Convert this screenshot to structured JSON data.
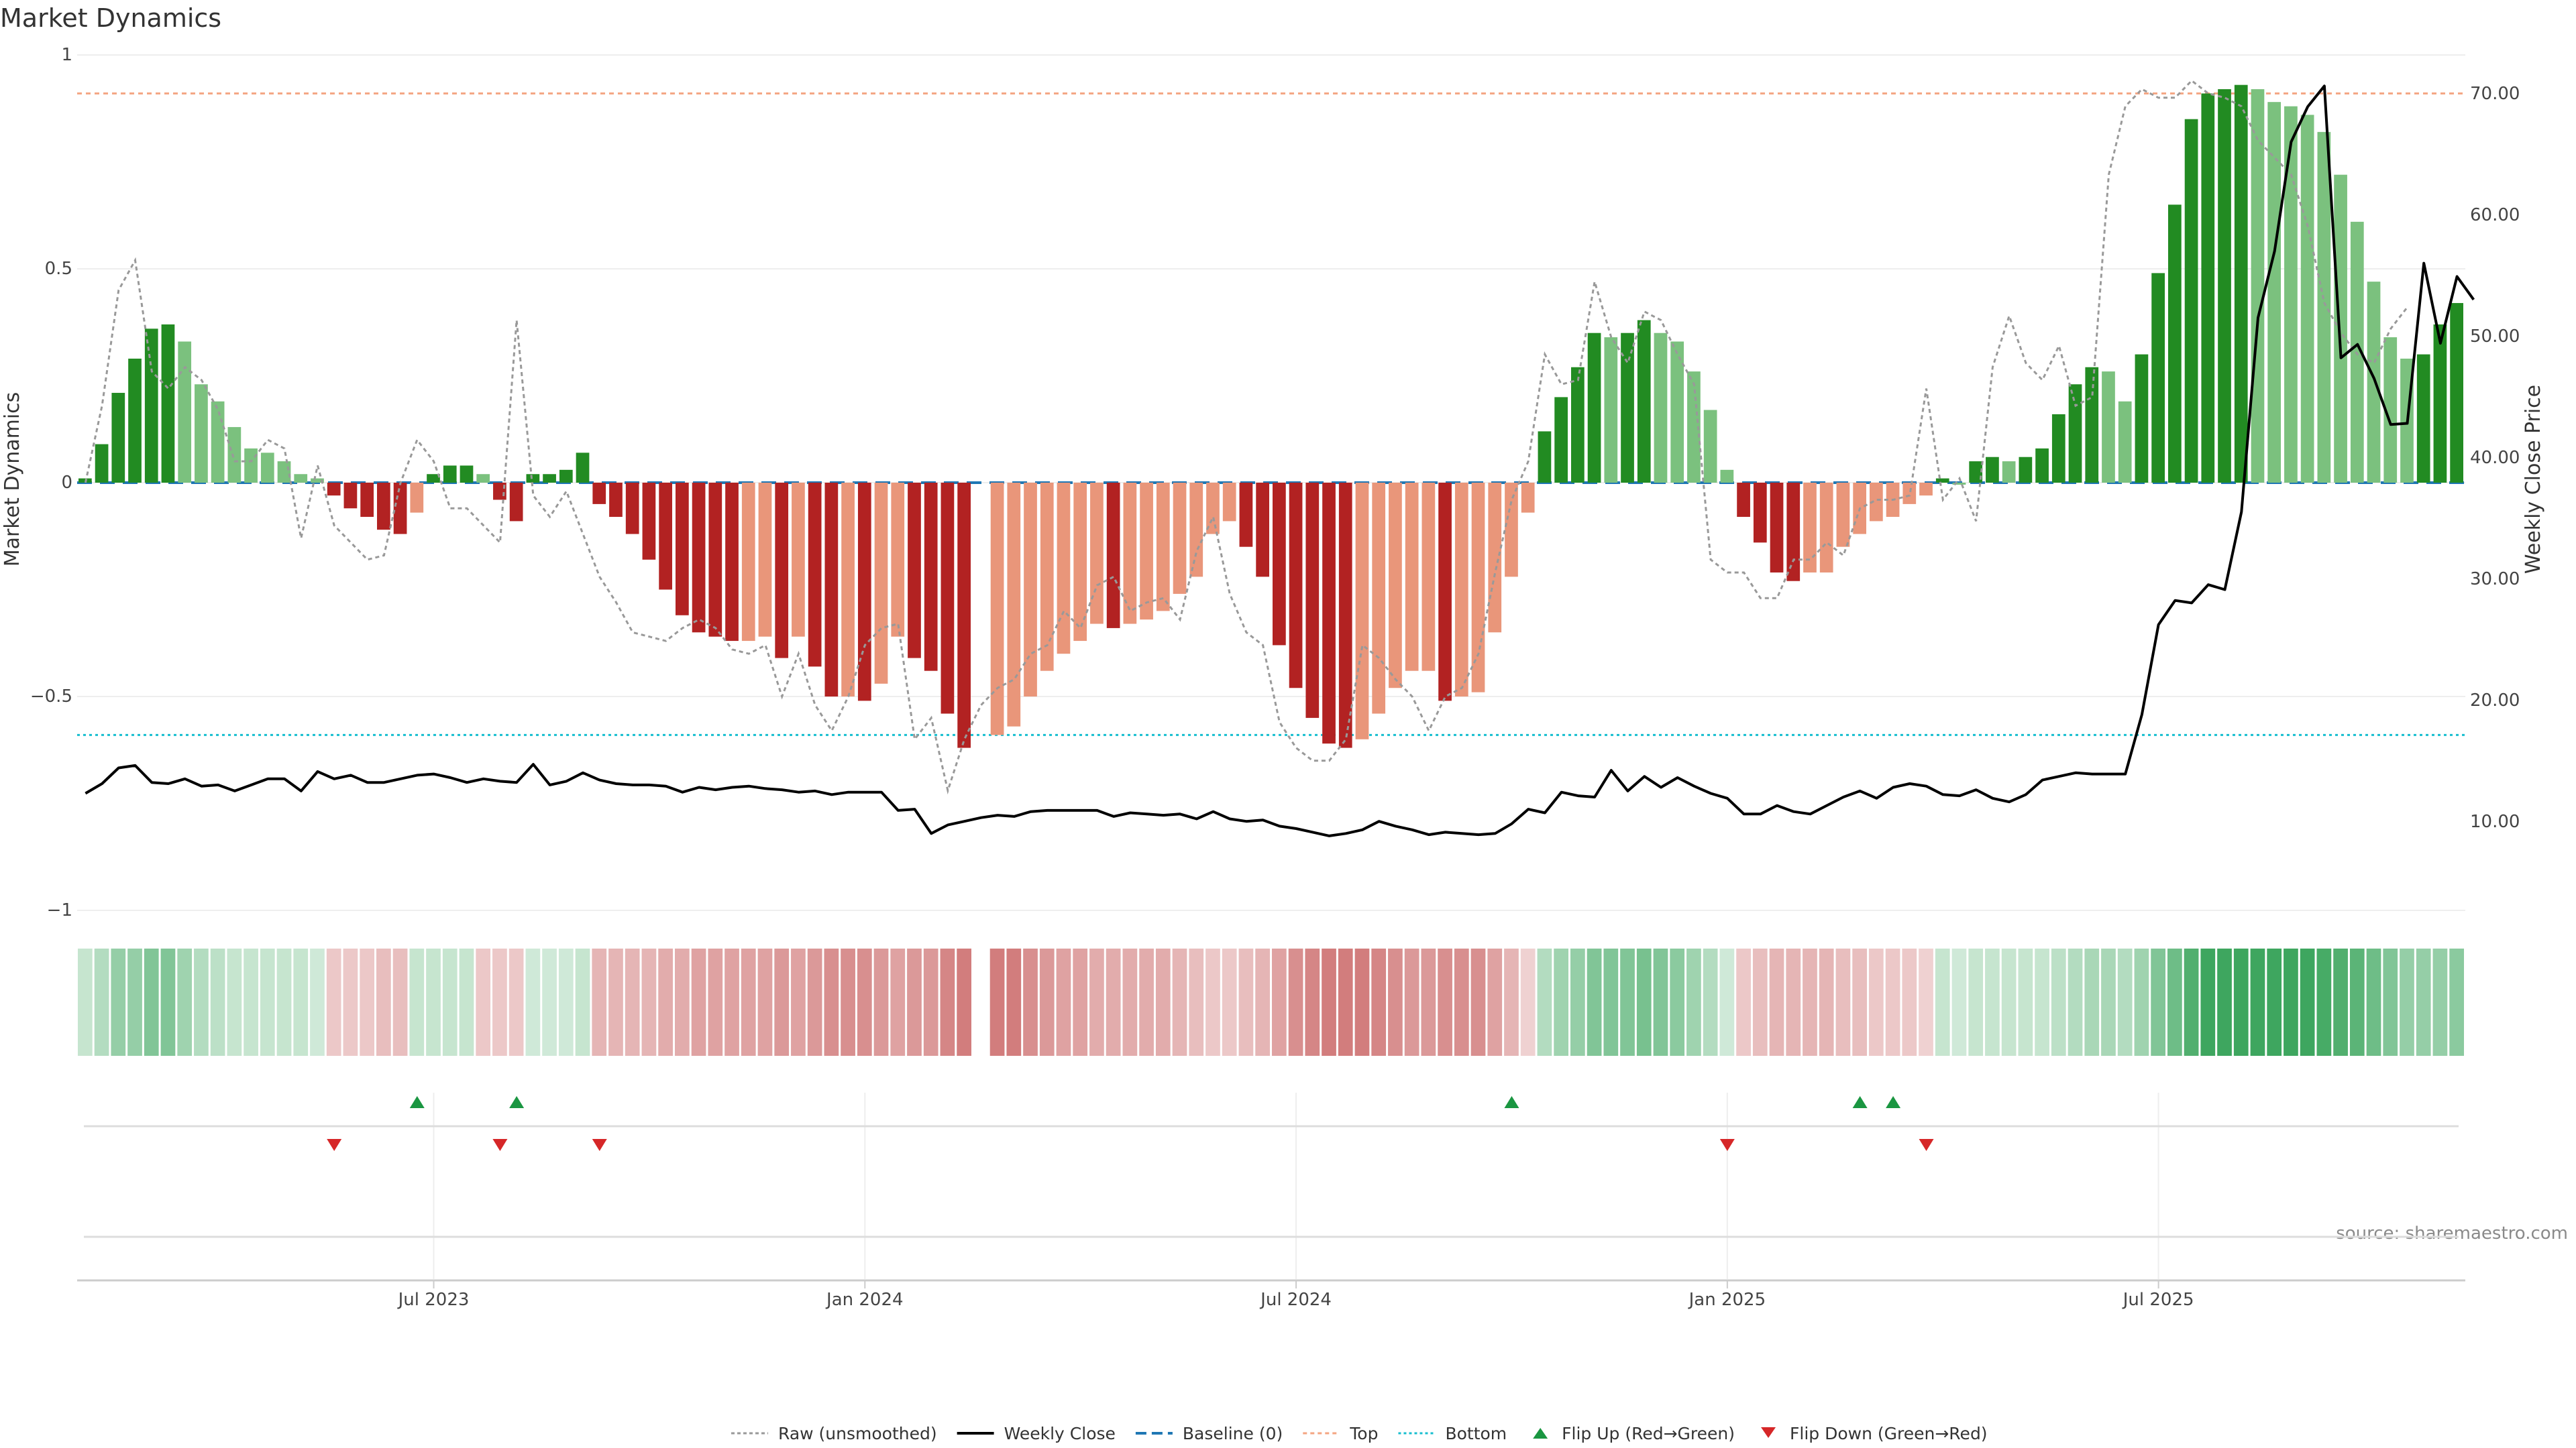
{
  "chart_data": {
    "type": "bar",
    "title": "Market Dynamics",
    "ylabel": "Market Dynamics",
    "y2label": "Weekly Close Price",
    "ylim": [
      -1,
      1
    ],
    "y2lim": [
      2.66,
      73.16
    ],
    "y_ticks": [
      {
        "value": 1,
        "label": "1"
      },
      {
        "value": 0.5,
        "label": "0.5"
      },
      {
        "value": 0,
        "label": "0"
      },
      {
        "value": -0.5,
        "label": "−0.5"
      },
      {
        "value": -1,
        "label": "−1"
      }
    ],
    "y2_ticks": [
      {
        "value": 10,
        "label": "10.00"
      },
      {
        "value": 20,
        "label": "20.00"
      },
      {
        "value": 30,
        "label": "30.00"
      },
      {
        "value": 40,
        "label": "40.00"
      },
      {
        "value": 50,
        "label": "50.00"
      },
      {
        "value": 60,
        "label": "60.00"
      },
      {
        "value": 70,
        "label": "70.00"
      }
    ],
    "x_ticks": [
      {
        "week": 21,
        "label": "Jul 2023"
      },
      {
        "week": 47,
        "label": "Jan 2024"
      },
      {
        "week": 73,
        "label": "Jul 2024"
      },
      {
        "week": 99,
        "label": "Jan 2025"
      },
      {
        "week": 125,
        "label": "Jul 2025"
      }
    ],
    "top_level": 0.91,
    "bottom_level": -0.59,
    "baseline": 0,
    "colors": {
      "strong_green": "#228B22",
      "weak_green": "#7BC17E",
      "strong_red": "#B22222",
      "weak_red": "#E9967A",
      "raw": "#999999",
      "close": "#000000",
      "baseline": "#1f77b4",
      "top": "#F4A582",
      "bottom": "#17BECF",
      "flip_up": "#1a9641",
      "flip_down": "#d62728"
    },
    "series": [
      {
        "name": "Market Dynamics",
        "values": [
          0.01,
          0.09,
          0.21,
          0.29,
          0.36,
          0.37,
          0.33,
          0.23,
          0.19,
          0.13,
          0.08,
          0.07,
          0.05,
          0.02,
          0.01,
          -0.03,
          -0.06,
          -0.08,
          -0.11,
          -0.12,
          -0.07,
          0.02,
          0.04,
          0.04,
          0.02,
          -0.04,
          -0.09,
          0.02,
          0.02,
          0.03,
          0.07,
          -0.05,
          -0.08,
          -0.12,
          -0.18,
          -0.25,
          -0.31,
          -0.35,
          -0.36,
          -0.37,
          -0.37,
          -0.36,
          -0.41,
          -0.36,
          -0.43,
          -0.5,
          -0.5,
          -0.51,
          -0.47,
          -0.36,
          -0.41,
          -0.44,
          -0.54,
          -0.62,
          null,
          -0.59,
          -0.57,
          -0.5,
          -0.44,
          -0.4,
          -0.37,
          -0.33,
          -0.34,
          -0.33,
          -0.32,
          -0.3,
          -0.26,
          -0.22,
          -0.12,
          -0.09,
          -0.15,
          -0.22,
          -0.38,
          -0.48,
          -0.55,
          -0.61,
          -0.62,
          -0.6,
          -0.54,
          -0.48,
          -0.44,
          -0.44,
          -0.51,
          -0.5,
          -0.49,
          -0.35,
          -0.22,
          -0.07,
          0.12,
          0.2,
          0.27,
          0.35,
          0.34,
          0.35,
          0.38,
          0.35,
          0.33,
          0.26,
          0.17,
          0.03,
          -0.08,
          -0.14,
          -0.21,
          -0.23,
          -0.21,
          -0.21,
          -0.15,
          -0.12,
          -0.09,
          -0.08,
          -0.05,
          -0.03,
          0.01,
          0.0,
          0.05,
          0.06,
          0.05,
          0.06,
          0.08,
          0.16,
          0.23,
          0.27,
          0.26,
          0.19,
          0.3,
          0.49,
          0.65,
          0.85,
          0.91,
          0.92,
          0.93,
          0.92,
          0.89,
          0.88,
          0.86,
          0.82,
          0.72,
          0.61,
          0.47,
          0.34,
          0.29,
          0.3,
          0.37,
          0.42
        ]
      },
      {
        "name": "Raw (unsmoothed)",
        "values": [
          0.0,
          0.18,
          0.45,
          0.52,
          0.26,
          0.22,
          0.27,
          0.24,
          0.17,
          0.05,
          0.05,
          0.1,
          0.08,
          -0.13,
          0.04,
          -0.1,
          -0.14,
          -0.18,
          -0.17,
          0.0,
          0.1,
          0.05,
          -0.06,
          -0.06,
          -0.1,
          -0.14,
          0.38,
          -0.03,
          -0.08,
          -0.02,
          -0.12,
          -0.22,
          -0.28,
          -0.35,
          -0.36,
          -0.37,
          -0.34,
          -0.32,
          -0.34,
          -0.39,
          -0.4,
          -0.38,
          -0.5,
          -0.4,
          -0.52,
          -0.58,
          -0.5,
          -0.38,
          -0.34,
          -0.33,
          -0.6,
          -0.55,
          -0.72,
          -0.6,
          -0.52,
          -0.48,
          -0.46,
          -0.4,
          -0.38,
          -0.3,
          -0.34,
          -0.24,
          -0.22,
          -0.3,
          -0.28,
          -0.27,
          -0.32,
          -0.16,
          -0.08,
          -0.26,
          -0.35,
          -0.38,
          -0.56,
          -0.62,
          -0.65,
          -0.65,
          -0.6,
          -0.38,
          -0.41,
          -0.46,
          -0.5,
          -0.58,
          -0.5,
          -0.48,
          -0.4,
          -0.21,
          -0.04,
          0.05,
          0.3,
          0.23,
          0.24,
          0.47,
          0.34,
          0.28,
          0.4,
          0.38,
          0.3,
          0.23,
          -0.18,
          -0.21,
          -0.21,
          -0.27,
          -0.27,
          -0.18,
          -0.18,
          -0.14,
          -0.17,
          -0.06,
          -0.04,
          -0.04,
          -0.03,
          0.22,
          -0.04,
          0.01,
          -0.09,
          0.27,
          0.39,
          0.28,
          0.24,
          0.32,
          0.18,
          0.2,
          0.72,
          0.88,
          0.92,
          0.9,
          0.9,
          0.94,
          0.91,
          0.9,
          0.88,
          0.8,
          0.76,
          0.72,
          0.6,
          0.42,
          0.35,
          0.3,
          0.28,
          0.36,
          0.41
        ]
      },
      {
        "name": "Weekly Close",
        "values": [
          12.3,
          13.1,
          14.4,
          14.6,
          13.2,
          13.1,
          13.5,
          12.9,
          13.0,
          12.5,
          13.0,
          13.5,
          13.5,
          12.5,
          14.1,
          13.5,
          13.8,
          13.2,
          13.2,
          13.5,
          13.8,
          13.9,
          13.6,
          13.2,
          13.5,
          13.3,
          13.2,
          14.7,
          13.0,
          13.3,
          14.0,
          13.4,
          13.1,
          13.0,
          13.0,
          12.9,
          12.4,
          12.8,
          12.6,
          12.8,
          12.9,
          12.7,
          12.6,
          12.4,
          12.5,
          12.2,
          12.4,
          12.4,
          12.4,
          10.9,
          11.0,
          9.0,
          9.7,
          10.0,
          10.3,
          10.5,
          10.4,
          10.8,
          10.9,
          10.9,
          10.9,
          10.9,
          10.4,
          10.7,
          10.6,
          10.5,
          10.6,
          10.2,
          10.8,
          10.2,
          10.0,
          10.1,
          9.6,
          9.4,
          9.1,
          8.8,
          9.0,
          9.3,
          10.0,
          9.6,
          9.3,
          8.9,
          9.1,
          9.0,
          8.9,
          9.0,
          9.8,
          11.0,
          10.7,
          12.4,
          12.1,
          12.0,
          14.2,
          12.5,
          13.7,
          12.8,
          13.6,
          12.9,
          12.3,
          11.9,
          10.6,
          10.6,
          11.3,
          10.8,
          10.6,
          11.3,
          12.0,
          12.5,
          11.9,
          12.8,
          13.1,
          12.9,
          12.2,
          12.1,
          12.6,
          11.9,
          11.6,
          12.2,
          13.4,
          13.7,
          14.0,
          13.9,
          13.9,
          13.9,
          18.8,
          26.2,
          28.2,
          28.0,
          29.5,
          29.1,
          35.5,
          51.5,
          57.0,
          66.0,
          68.9,
          70.6,
          48.2,
          49.3,
          46.5,
          42.7,
          42.8,
          56.0,
          49.4,
          54.9,
          53.0
        ]
      }
    ],
    "bands": {
      "label": "",
      "values": [
        0.2,
        0.3,
        0.45,
        0.45,
        0.55,
        0.55,
        0.4,
        0.3,
        0.25,
        0.2,
        0.2,
        0.2,
        0.2,
        0.2,
        0.15,
        -0.2,
        -0.2,
        -0.2,
        -0.25,
        -0.25,
        0.2,
        0.2,
        0.2,
        0.2,
        -0.2,
        -0.2,
        -0.2,
        0.15,
        0.15,
        0.15,
        0.2,
        -0.3,
        -0.3,
        -0.3,
        -0.3,
        -0.35,
        -0.35,
        -0.4,
        -0.4,
        -0.4,
        -0.4,
        -0.4,
        -0.45,
        -0.4,
        -0.45,
        -0.5,
        -0.5,
        -0.5,
        -0.45,
        -0.4,
        -0.45,
        -0.45,
        -0.55,
        -0.6,
        null,
        -0.6,
        -0.6,
        -0.5,
        -0.45,
        -0.4,
        -0.4,
        -0.35,
        -0.35,
        -0.35,
        -0.35,
        -0.35,
        -0.3,
        -0.25,
        -0.2,
        -0.2,
        -0.25,
        -0.3,
        -0.4,
        -0.5,
        -0.55,
        -0.6,
        -0.6,
        -0.6,
        -0.55,
        -0.5,
        -0.45,
        -0.45,
        -0.5,
        -0.5,
        -0.5,
        -0.4,
        -0.3,
        -0.15,
        0.3,
        0.4,
        0.45,
        0.55,
        0.55,
        0.55,
        0.6,
        0.55,
        0.5,
        0.4,
        0.3,
        0.15,
        -0.2,
        -0.25,
        -0.3,
        -0.3,
        -0.3,
        -0.3,
        -0.25,
        -0.25,
        -0.2,
        -0.2,
        -0.2,
        -0.15,
        0.2,
        0.15,
        0.2,
        0.2,
        0.2,
        0.2,
        0.2,
        0.25,
        0.3,
        0.35,
        0.35,
        0.3,
        0.4,
        0.55,
        0.65,
        0.8,
        0.9,
        0.9,
        0.9,
        0.9,
        0.9,
        0.9,
        0.9,
        0.85,
        0.8,
        0.75,
        0.65,
        0.55,
        0.45,
        0.45,
        0.45,
        0.5
      ]
    },
    "flips_up": [
      20,
      26,
      86,
      107,
      109
    ],
    "flips_down": [
      15,
      25,
      31,
      99,
      111
    ],
    "legend": [
      {
        "key": "raw",
        "label": "Raw (unsmoothed)"
      },
      {
        "key": "close",
        "label": "Weekly Close"
      },
      {
        "key": "baseline",
        "label": "Baseline (0)"
      },
      {
        "key": "top",
        "label": "Top"
      },
      {
        "key": "bottom",
        "label": "Bottom"
      },
      {
        "key": "flip_up",
        "label": "Flip Up (Red→Green)"
      },
      {
        "key": "flip_down",
        "label": "Flip Down (Green→Red)"
      }
    ],
    "legend_position": "bottom-center",
    "source": "source: sharemaestro.com",
    "grid": true
  }
}
